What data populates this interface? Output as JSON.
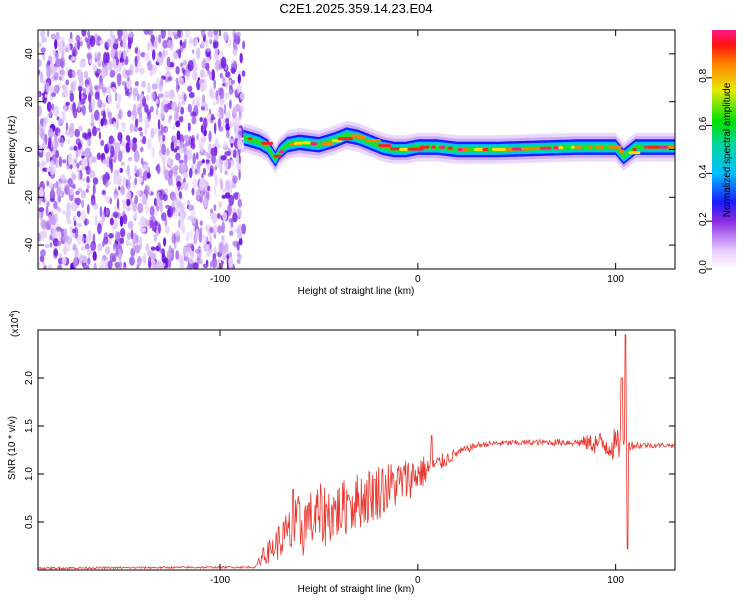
{
  "title": "C2E1.2025.359.14.23.E04",
  "chart_data": [
    {
      "type": "heatmap",
      "xlabel": "Height of straight line (km)",
      "ylabel": "Frequency (Hz)",
      "xlim": [
        -192,
        130
      ],
      "ylim": [
        -50,
        50
      ],
      "x_ticks": [
        -100,
        0,
        100
      ],
      "y_ticks": [
        -40,
        -20,
        0,
        20,
        40
      ],
      "colorbar": {
        "label": "Normalized spectral amplitude",
        "range": [
          0,
          1
        ],
        "ticks": [
          "0.0",
          "0.2",
          "0.4",
          "0.6",
          "0.8"
        ]
      },
      "noise_region_x": [
        -192,
        -88
      ],
      "ridge": {
        "x": [
          -88,
          -80,
          -76,
          -72,
          -70,
          -66,
          -60,
          -50,
          -42,
          -36,
          -30,
          -24,
          -18,
          -12,
          -6,
          0,
          10,
          20,
          40,
          60,
          80,
          100,
          104,
          110,
          120,
          130
        ],
        "freq": [
          5,
          3,
          1,
          -4,
          -1,
          2,
          3,
          2,
          4,
          6,
          5,
          3,
          1,
          0,
          0,
          1,
          1,
          0,
          0,
          0.5,
          1,
          1,
          -3,
          1,
          1,
          1
        ]
      }
    },
    {
      "type": "line",
      "xlabel": "Height of straight line (km)",
      "ylabel": "SNR (10 * v/v)",
      "multiplier": "(x10",
      "multiplier_exp": "4",
      "multiplier_close": ")",
      "xlim": [
        -192,
        130
      ],
      "ylim": [
        0,
        2.5
      ],
      "x_ticks": [
        -100,
        0,
        100
      ],
      "y_ticks": [
        0.5,
        1.0,
        1.5,
        2.0
      ],
      "color": "#e8362e",
      "envelope": {
        "x": [
          -192,
          -82,
          -80,
          -70,
          -60,
          -50,
          -40,
          -30,
          -20,
          -10,
          0,
          10,
          20,
          30,
          40,
          60,
          80,
          90,
          100,
          104,
          106,
          108,
          115,
          130
        ],
        "mean": [
          0.02,
          0.03,
          0.1,
          0.3,
          0.45,
          0.55,
          0.62,
          0.72,
          0.82,
          0.9,
          1.0,
          1.1,
          1.22,
          1.3,
          1.32,
          1.33,
          1.33,
          1.32,
          1.3,
          1.3,
          1.3,
          1.3,
          1.3,
          1.3
        ],
        "amplitude": [
          0.01,
          0.01,
          0.05,
          0.2,
          0.35,
          0.35,
          0.3,
          0.3,
          0.3,
          0.25,
          0.2,
          0.1,
          0.05,
          0.03,
          0.03,
          0.03,
          0.04,
          0.12,
          0.18,
          0.1,
          0.05,
          0.05,
          0.03,
          0.02
        ]
      },
      "spikes": [
        {
          "x": -78,
          "y": 0.23
        },
        {
          "x": -63,
          "y": 0.84
        },
        {
          "x": -55,
          "y": 0.7
        },
        {
          "x": -35,
          "y": 0.78
        },
        {
          "x": -18,
          "y": 1.05
        },
        {
          "x": 7,
          "y": 1.4
        },
        {
          "x": 103,
          "y": 2.0
        },
        {
          "x": 105,
          "y": 2.45
        },
        {
          "x": 106,
          "y": 0.22
        }
      ]
    }
  ]
}
